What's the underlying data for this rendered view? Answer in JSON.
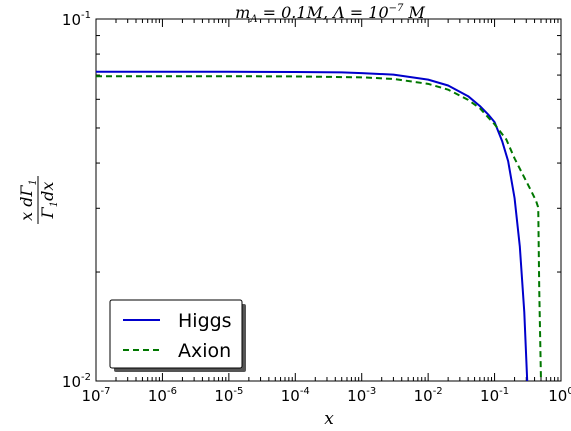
{
  "chart_data": {
    "type": "line",
    "title": "m_A = 0.1M, Λ = 10^-7 M",
    "title_parts": {
      "m": "m",
      "sub": "A",
      "mid": " = 0.1M,  Λ = 10",
      "sup": "−7",
      "end": " M"
    },
    "xlabel": "x",
    "ylabel": "x dΓ1 / Γ1 dx",
    "ylabel_parts": {
      "num": "x dΓ",
      "num_sub": "1",
      "den": "Γ",
      "den_sub": "1",
      "den_end": "dx"
    },
    "x_scale": "log",
    "y_scale": "log",
    "xlim": [
      1e-07,
      1
    ],
    "ylim": [
      0.01,
      0.1
    ],
    "x_ticks": [
      {
        "value": 1e-07,
        "base": "10",
        "exp": "-7"
      },
      {
        "value": 1e-06,
        "base": "10",
        "exp": "-6"
      },
      {
        "value": 1e-05,
        "base": "10",
        "exp": "-5"
      },
      {
        "value": 0.0001,
        "base": "10",
        "exp": "-4"
      },
      {
        "value": 0.001,
        "base": "10",
        "exp": "-3"
      },
      {
        "value": 0.01,
        "base": "10",
        "exp": "-2"
      },
      {
        "value": 0.1,
        "base": "10",
        "exp": "-1"
      },
      {
        "value": 1,
        "base": "10",
        "exp": "0"
      }
    ],
    "y_ticks": [
      {
        "value": 0.01,
        "base": "10",
        "exp": "-2"
      },
      {
        "value": 0.1,
        "base": "10",
        "exp": "-1"
      }
    ],
    "grid": false,
    "legend_position": "bottom-left",
    "series": [
      {
        "name": "Higgs",
        "color": "#0000cc",
        "style": "solid",
        "x": [
          1e-07,
          1e-06,
          1e-05,
          0.0001,
          0.0005,
          0.001,
          0.003,
          0.01,
          0.02,
          0.04,
          0.06,
          0.08,
          0.1,
          0.13,
          0.16,
          0.2,
          0.24,
          0.28,
          0.31
        ],
        "y": [
          0.0715,
          0.0715,
          0.0715,
          0.0714,
          0.0712,
          0.0709,
          0.0702,
          0.068,
          0.0655,
          0.0612,
          0.0575,
          0.0545,
          0.0519,
          0.046,
          0.0405,
          0.032,
          0.0235,
          0.0155,
          0.01
        ]
      },
      {
        "name": "Axion",
        "color": "#007700",
        "style": "dashed",
        "x": [
          1e-07,
          1e-06,
          1e-05,
          0.0001,
          0.001,
          0.003,
          0.01,
          0.02,
          0.04,
          0.06,
          0.08,
          0.1,
          0.15,
          0.2,
          0.28,
          0.35,
          0.42,
          0.45,
          0.455,
          0.47,
          0.5
        ],
        "y": [
          0.0695,
          0.0695,
          0.0695,
          0.0694,
          0.069,
          0.0683,
          0.0662,
          0.0638,
          0.0598,
          0.0567,
          0.0535,
          0.0512,
          0.0465,
          0.0412,
          0.0365,
          0.0337,
          0.0315,
          0.0303,
          0.0295,
          0.018,
          0.01
        ]
      }
    ]
  }
}
